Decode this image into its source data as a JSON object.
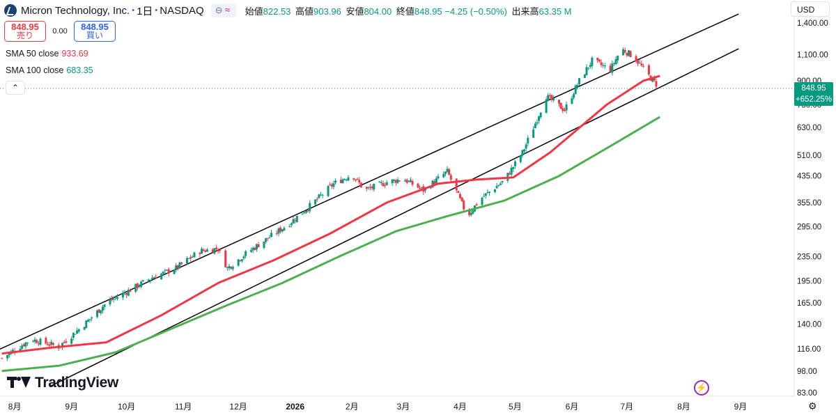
{
  "header": {
    "symbol_name": "Micron Technology, Inc.",
    "interval": "1日",
    "exchange": "NASDAQ",
    "open_label": "始値",
    "open_value": "822.53",
    "high_label": "高値",
    "high_value": "903.96",
    "low_label": "安値",
    "low_value": "804.00",
    "close_label": "終値",
    "close_value": "848.95",
    "change": "−4.25 (−0.50%)",
    "volume_label": "出来高",
    "volume_value": "63.35 M"
  },
  "trade": {
    "sell_price": "848.95",
    "sell_label": "売り",
    "spread": "0.00",
    "buy_price": "848.95",
    "buy_label": "買い"
  },
  "indicators": [
    {
      "name": "SMA 50 close",
      "value": "933.69",
      "color": "#f23645"
    },
    {
      "name": "SMA 100 close",
      "value": "683.35",
      "color": "#4caf50"
    }
  ],
  "currency": "USD",
  "price_label": {
    "price": "848.95",
    "change_pct": "+652.25%"
  },
  "branding": "TradingView",
  "colors": {
    "up": "#089981",
    "down": "#f23645",
    "sma50": "#f23645",
    "sma100": "#4caf50",
    "trendline": "#000000"
  },
  "chart_data": {
    "type": "candlestick",
    "y_scale": "log",
    "ylim": [
      83,
      1400
    ],
    "y_ticks": [
      "1,400.00",
      "1,100.00",
      "900.00",
      "750.00",
      "630.00",
      "510.00",
      "435.00",
      "355.00",
      "295.00",
      "235.00",
      "195.00",
      "165.00",
      "140.00",
      "116.00",
      "98.00",
      "83.00"
    ],
    "x_ticks": [
      "8月",
      "9月",
      "10月",
      "11月",
      "12月",
      "2026",
      "2月",
      "3月",
      "4月",
      "5月",
      "6月",
      "7月",
      "8月",
      "9月"
    ],
    "x_range": [
      "2025-07-27",
      "2026-09-28"
    ],
    "price_anchors": [
      [
        "2025-07-25",
        108
      ],
      [
        "2025-08-10",
        125
      ],
      [
        "2025-08-25",
        118
      ],
      [
        "2025-09-08",
        140
      ],
      [
        "2025-09-20",
        165
      ],
      [
        "2025-10-05",
        185
      ],
      [
        "2025-10-15",
        200
      ],
      [
        "2025-10-28",
        215
      ],
      [
        "2025-11-10",
        245
      ],
      [
        "2025-11-20",
        250
      ],
      [
        "2025-11-25",
        215
      ],
      [
        "2025-12-05",
        240
      ],
      [
        "2025-12-15",
        265
      ],
      [
        "2025-12-28",
        300
      ],
      [
        "2026-01-10",
        350
      ],
      [
        "2026-01-22",
        410
      ],
      [
        "2026-02-01",
        440
      ],
      [
        "2026-02-08",
        390
      ],
      [
        "2026-02-20",
        415
      ],
      [
        "2026-03-01",
        425
      ],
      [
        "2026-03-12",
        390
      ],
      [
        "2026-03-25",
        450
      ],
      [
        "2026-04-05",
        320
      ],
      [
        "2026-04-12",
        365
      ],
      [
        "2026-04-25",
        420
      ],
      [
        "2026-05-05",
        520
      ],
      [
        "2026-05-12",
        650
      ],
      [
        "2026-05-18",
        800
      ],
      [
        "2026-05-28",
        720
      ],
      [
        "2026-06-05",
        900
      ],
      [
        "2026-06-12",
        1050
      ],
      [
        "2026-06-22",
        980
      ],
      [
        "2026-06-28",
        1150
      ],
      [
        "2026-07-05",
        1080
      ],
      [
        "2026-07-12",
        950
      ],
      [
        "2026-07-19",
        849
      ]
    ],
    "series": [
      {
        "name": "SMA 50 close",
        "values": [
          [
            "2025-07-25",
            112
          ],
          [
            "2025-08-20",
            117
          ],
          [
            "2025-09-20",
            122
          ],
          [
            "2025-10-20",
            150
          ],
          [
            "2025-11-20",
            192
          ],
          [
            "2025-12-20",
            228
          ],
          [
            "2026-01-20",
            280
          ],
          [
            "2026-02-20",
            355
          ],
          [
            "2026-03-20",
            410
          ],
          [
            "2026-04-10",
            423
          ],
          [
            "2026-04-30",
            430
          ],
          [
            "2026-05-20",
            520
          ],
          [
            "2026-06-20",
            750
          ],
          [
            "2026-07-10",
            900
          ],
          [
            "2026-07-19",
            934
          ]
        ]
      },
      {
        "name": "SMA 100 close",
        "values": [
          [
            "2025-07-25",
            98
          ],
          [
            "2025-08-25",
            102
          ],
          [
            "2025-09-25",
            113
          ],
          [
            "2025-10-25",
            135
          ],
          [
            "2025-11-25",
            162
          ],
          [
            "2025-12-25",
            192
          ],
          [
            "2026-01-25",
            235
          ],
          [
            "2026-02-25",
            285
          ],
          [
            "2026-03-25",
            320
          ],
          [
            "2026-04-25",
            360
          ],
          [
            "2026-05-25",
            435
          ],
          [
            "2026-06-25",
            560
          ],
          [
            "2026-07-19",
            683
          ]
        ]
      }
    ],
    "trendlines": [
      {
        "from": [
          "2025-07-20",
          113
        ],
        "to": [
          "2026-08-31",
          1500
        ]
      },
      {
        "from": [
          "2025-08-20",
          87
        ],
        "to": [
          "2026-08-31",
          1150
        ]
      }
    ],
    "current_price": 848.95
  }
}
